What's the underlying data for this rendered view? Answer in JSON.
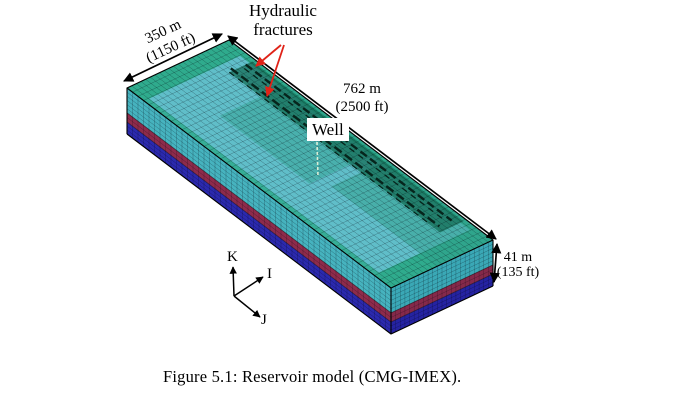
{
  "figure": {
    "caption": "Figure 5.1: Reservoir model (CMG-IMEX)."
  },
  "annotations": {
    "fractures_label_line1": "Hydraulic",
    "fractures_label_line2": "fractures",
    "width_label_line1": "350 m",
    "width_label_line2": "(1150 ft)",
    "length_label_line1": "762 m",
    "length_label_line2": "(2500 ft)",
    "well_label": "Well",
    "thickness_label_line1": "41 m",
    "thickness_label_line2": "(135 ft)",
    "axis_k": "K",
    "axis_i": "I",
    "axis_j": "J"
  },
  "colors": {
    "background": "#ffffff",
    "top_face": "#60bec9",
    "top_green": "#2fab8d",
    "top_green_mid": "#2f9f8c",
    "top_dark_band": "#146c55",
    "fracture_line": "#06251c",
    "side_teal": "#46b3bf",
    "side_red": "#8e2b4b",
    "side_blue": "#2b29ae",
    "end_teal": "#3aa8b6",
    "end_red": "#85294a",
    "end_blue": "#2523a2",
    "grid_line": "rgba(0,0,10,0.36)",
    "edge_line": "#000000",
    "dimension_arrow": "#000000",
    "fracture_arrow": "#e02318",
    "well_line": "rgba(235,245,220,0.9)"
  }
}
